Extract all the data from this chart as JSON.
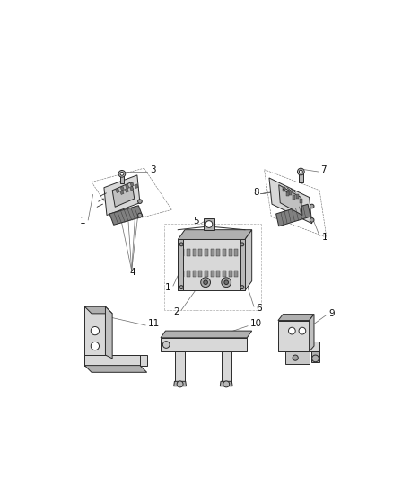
{
  "background_color": "#ffffff",
  "fig_width": 4.38,
  "fig_height": 5.33,
  "dpi": 100,
  "line_color": "#2a2a2a",
  "light_gray": "#d8d8d8",
  "mid_gray": "#b0b0b0",
  "dark_gray": "#888888",
  "callout_color": "#666666",
  "label_color": "#111111",
  "label_fontsize": 7.5
}
